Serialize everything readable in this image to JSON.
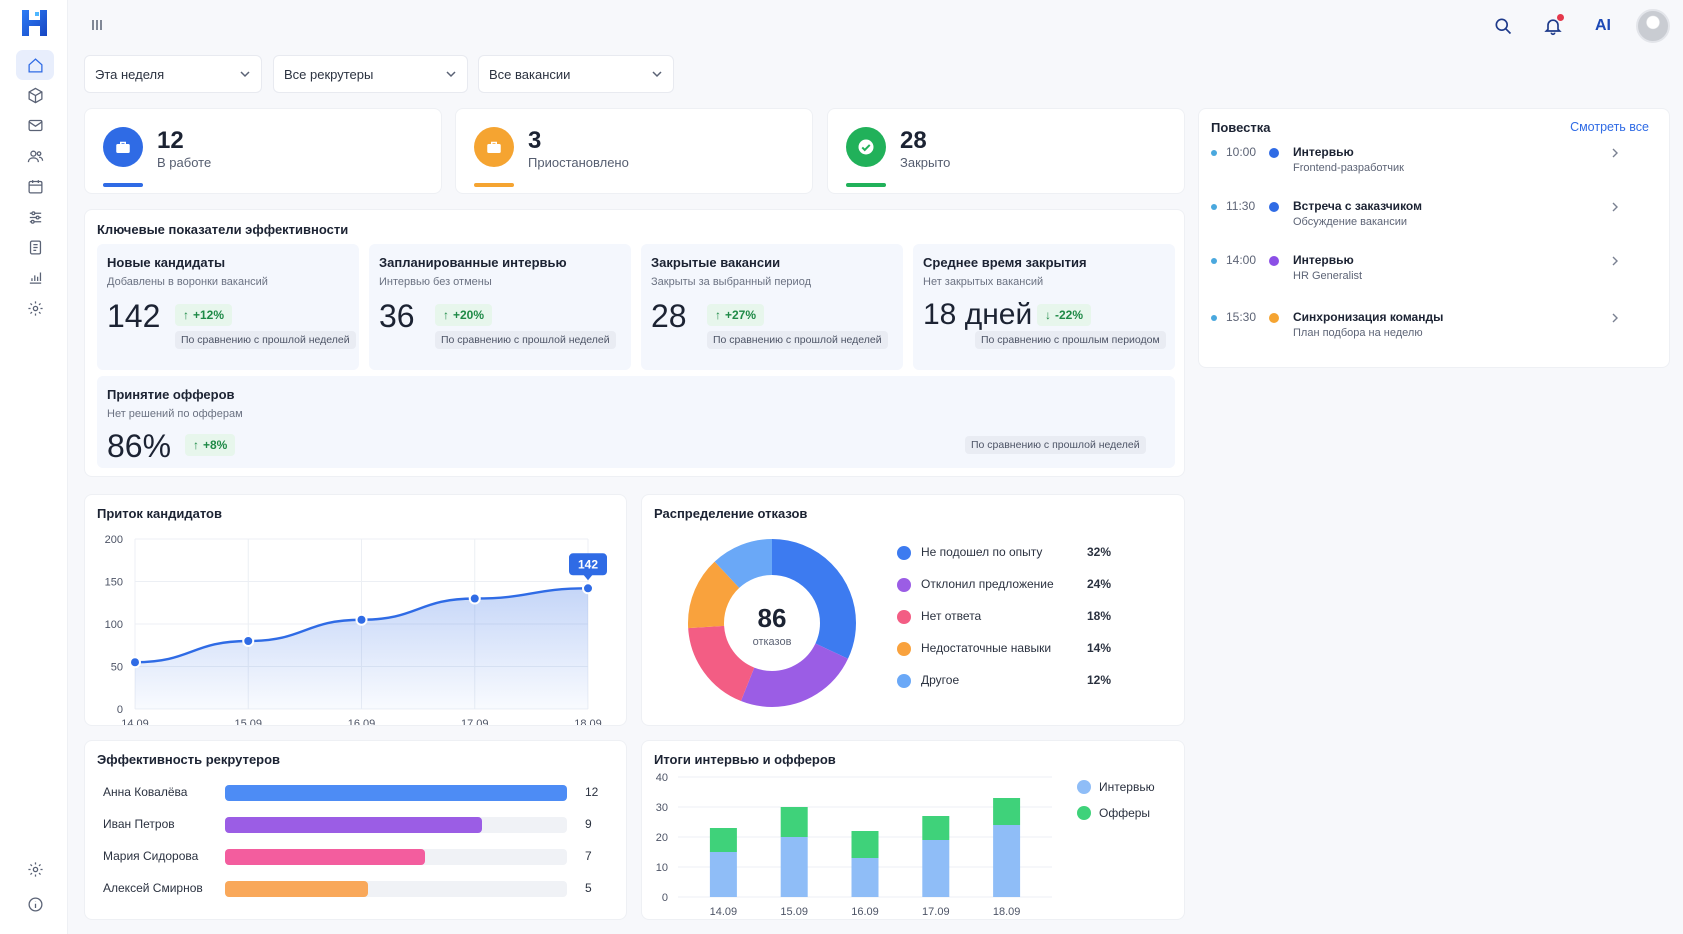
{
  "sidebar": {
    "items": [
      "home",
      "box",
      "mail",
      "users",
      "calendar",
      "filters",
      "document",
      "analytics",
      "settings-gear"
    ],
    "bottom": [
      "settings",
      "info"
    ]
  },
  "topbar": {
    "ai_label": "AI"
  },
  "filters": {
    "period": "Эта неделя",
    "recruiters": "Все рекрутеры",
    "vacancies": "Все вакансии"
  },
  "stats": [
    {
      "value": "12",
      "label": "В работе",
      "color": "#2f6be5"
    },
    {
      "value": "3",
      "label": "Приостановлено",
      "color": "#f5a431"
    },
    {
      "value": "28",
      "label": "Закрыто",
      "color": "#21b15a"
    }
  ],
  "kpi": {
    "title": "Ключевые показатели эффективности",
    "cards": [
      {
        "title": "Новые кандидаты",
        "subtitle": "Добавлены в воронки вакансий",
        "value": "142",
        "delta": "+12%",
        "dir": "up",
        "compare": "По сравнению с прошлой неделей"
      },
      {
        "title": "Запланированные интервью",
        "subtitle": "Интервью без отмены",
        "value": "36",
        "delta": "+20%",
        "dir": "up",
        "compare": "По сравнению с прошлой неделей"
      },
      {
        "title": "Закрытые вакансии",
        "subtitle": "Закрыты за выбранный период",
        "value": "28",
        "delta": "+27%",
        "dir": "up",
        "compare": "По сравнению с прошлой неделей"
      },
      {
        "title": "Среднее время закрытия",
        "subtitle": "Нет закрытых вакансий",
        "value": "18 дней",
        "delta": "-22%",
        "dir": "down",
        "compare": "По сравнению с прошлым периодом"
      }
    ],
    "wide": {
      "title": "Принятие офферов",
      "subtitle": "Нет решений по офферам",
      "value": "86%",
      "delta": "+8%",
      "dir": "up",
      "compare": "По сравнению с прошлой неделей"
    }
  },
  "agenda": {
    "title": "Повестка",
    "see_all": "Смотреть все",
    "items": [
      {
        "time": "10:00",
        "title": "Интервью",
        "subtitle": "Frontend-разработчик",
        "color": "#2f6be5"
      },
      {
        "time": "11:30",
        "title": "Встреча с заказчиком",
        "subtitle": "Обсуждение вакансии",
        "color": "#2f6be5"
      },
      {
        "time": "14:00",
        "title": "Интервью",
        "subtitle": "HR Generalist",
        "color": "#8b4fe6"
      },
      {
        "time": "15:30",
        "title": "Синхронизация команды",
        "subtitle": "План подбора на неделю",
        "color": "#f5a431"
      }
    ]
  },
  "chart_data": [
    {
      "type": "line",
      "title": "Приток кандидатов",
      "x": [
        "14.09",
        "15.09",
        "16.09",
        "17.09",
        "18.09"
      ],
      "values": [
        55,
        80,
        105,
        130,
        142
      ],
      "yticks": [
        0,
        50,
        100,
        150,
        200
      ],
      "ylim": [
        0,
        200
      ],
      "callout": "142",
      "grid": true
    },
    {
      "type": "pie",
      "title": "Распределение отказов",
      "center_value": "86",
      "center_label": "отказов",
      "slices": [
        {
          "label": "Не подошел по опыту",
          "value": 32,
          "pct": "32%",
          "color": "#3d7bf0"
        },
        {
          "label": "Отклонил предложение",
          "value": 24,
          "pct": "24%",
          "color": "#9b5de5"
        },
        {
          "label": "Нет ответа",
          "value": 18,
          "pct": "18%",
          "color": "#f35d84"
        },
        {
          "label": "Недостаточные навыки",
          "value": 14,
          "pct": "14%",
          "color": "#f9a23d"
        },
        {
          "label": "Другое",
          "value": 12,
          "pct": "12%",
          "color": "#6aa8f7"
        }
      ]
    },
    {
      "type": "bar",
      "title": "Эффективность рекрутеров",
      "categories": [
        "Анна Ковалёва",
        "Иван Петров",
        "Мария Сидорова",
        "Алексей Смирнов"
      ],
      "values": [
        12,
        9,
        7,
        5
      ],
      "labels": [
        "12",
        "9",
        "7",
        "5"
      ],
      "max": 12,
      "colors": [
        "#4d8cf5",
        "#9b5de5",
        "#f35d9e",
        "#f9a85a"
      ]
    },
    {
      "type": "bar",
      "title": "Итоги интервью и офферов",
      "categories": [
        "14.09",
        "15.09",
        "16.09",
        "17.09",
        "18.09"
      ],
      "series": [
        {
          "name": "Интервью",
          "values": [
            15,
            20,
            13,
            19,
            24
          ],
          "color": "#8fbdf7"
        },
        {
          "name": "Офферы",
          "values": [
            8,
            10,
            9,
            8,
            9
          ],
          "color": "#3fd27a"
        }
      ],
      "yticks": [
        0,
        10,
        20,
        30,
        40
      ],
      "ylim": [
        0,
        40
      ]
    }
  ]
}
